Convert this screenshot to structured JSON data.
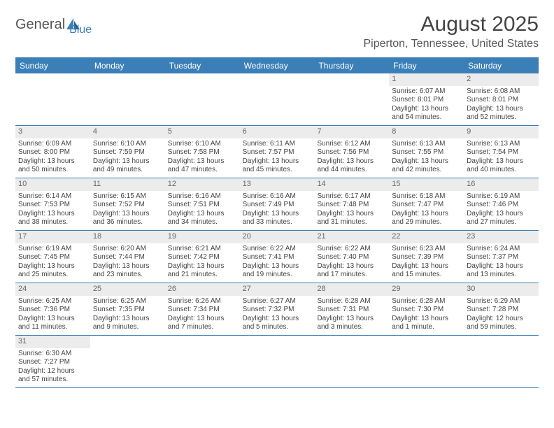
{
  "logo": {
    "part1": "General",
    "part2": "Blue"
  },
  "title": "August 2025",
  "location": "Piperton, Tennessee, United States",
  "day_headers": [
    "Sunday",
    "Monday",
    "Tuesday",
    "Wednesday",
    "Thursday",
    "Friday",
    "Saturday"
  ],
  "colors": {
    "accent": "#3a7fb8",
    "daynum_bg": "#ececec"
  },
  "weeks": [
    [
      null,
      null,
      null,
      null,
      null,
      {
        "n": "1",
        "sr": "6:07 AM",
        "ss": "8:01 PM",
        "dl": "13 hours and 54 minutes."
      },
      {
        "n": "2",
        "sr": "6:08 AM",
        "ss": "8:01 PM",
        "dl": "13 hours and 52 minutes."
      }
    ],
    [
      {
        "n": "3",
        "sr": "6:09 AM",
        "ss": "8:00 PM",
        "dl": "13 hours and 50 minutes."
      },
      {
        "n": "4",
        "sr": "6:10 AM",
        "ss": "7:59 PM",
        "dl": "13 hours and 49 minutes."
      },
      {
        "n": "5",
        "sr": "6:10 AM",
        "ss": "7:58 PM",
        "dl": "13 hours and 47 minutes."
      },
      {
        "n": "6",
        "sr": "6:11 AM",
        "ss": "7:57 PM",
        "dl": "13 hours and 45 minutes."
      },
      {
        "n": "7",
        "sr": "6:12 AM",
        "ss": "7:56 PM",
        "dl": "13 hours and 44 minutes."
      },
      {
        "n": "8",
        "sr": "6:13 AM",
        "ss": "7:55 PM",
        "dl": "13 hours and 42 minutes."
      },
      {
        "n": "9",
        "sr": "6:13 AM",
        "ss": "7:54 PM",
        "dl": "13 hours and 40 minutes."
      }
    ],
    [
      {
        "n": "10",
        "sr": "6:14 AM",
        "ss": "7:53 PM",
        "dl": "13 hours and 38 minutes."
      },
      {
        "n": "11",
        "sr": "6:15 AM",
        "ss": "7:52 PM",
        "dl": "13 hours and 36 minutes."
      },
      {
        "n": "12",
        "sr": "6:16 AM",
        "ss": "7:51 PM",
        "dl": "13 hours and 34 minutes."
      },
      {
        "n": "13",
        "sr": "6:16 AM",
        "ss": "7:49 PM",
        "dl": "13 hours and 33 minutes."
      },
      {
        "n": "14",
        "sr": "6:17 AM",
        "ss": "7:48 PM",
        "dl": "13 hours and 31 minutes."
      },
      {
        "n": "15",
        "sr": "6:18 AM",
        "ss": "7:47 PM",
        "dl": "13 hours and 29 minutes."
      },
      {
        "n": "16",
        "sr": "6:19 AM",
        "ss": "7:46 PM",
        "dl": "13 hours and 27 minutes."
      }
    ],
    [
      {
        "n": "17",
        "sr": "6:19 AM",
        "ss": "7:45 PM",
        "dl": "13 hours and 25 minutes."
      },
      {
        "n": "18",
        "sr": "6:20 AM",
        "ss": "7:44 PM",
        "dl": "13 hours and 23 minutes."
      },
      {
        "n": "19",
        "sr": "6:21 AM",
        "ss": "7:42 PM",
        "dl": "13 hours and 21 minutes."
      },
      {
        "n": "20",
        "sr": "6:22 AM",
        "ss": "7:41 PM",
        "dl": "13 hours and 19 minutes."
      },
      {
        "n": "21",
        "sr": "6:22 AM",
        "ss": "7:40 PM",
        "dl": "13 hours and 17 minutes."
      },
      {
        "n": "22",
        "sr": "6:23 AM",
        "ss": "7:39 PM",
        "dl": "13 hours and 15 minutes."
      },
      {
        "n": "23",
        "sr": "6:24 AM",
        "ss": "7:37 PM",
        "dl": "13 hours and 13 minutes."
      }
    ],
    [
      {
        "n": "24",
        "sr": "6:25 AM",
        "ss": "7:36 PM",
        "dl": "13 hours and 11 minutes."
      },
      {
        "n": "25",
        "sr": "6:25 AM",
        "ss": "7:35 PM",
        "dl": "13 hours and 9 minutes."
      },
      {
        "n": "26",
        "sr": "6:26 AM",
        "ss": "7:34 PM",
        "dl": "13 hours and 7 minutes."
      },
      {
        "n": "27",
        "sr": "6:27 AM",
        "ss": "7:32 PM",
        "dl": "13 hours and 5 minutes."
      },
      {
        "n": "28",
        "sr": "6:28 AM",
        "ss": "7:31 PM",
        "dl": "13 hours and 3 minutes."
      },
      {
        "n": "29",
        "sr": "6:28 AM",
        "ss": "7:30 PM",
        "dl": "13 hours and 1 minute."
      },
      {
        "n": "30",
        "sr": "6:29 AM",
        "ss": "7:28 PM",
        "dl": "12 hours and 59 minutes."
      }
    ],
    [
      {
        "n": "31",
        "sr": "6:30 AM",
        "ss": "7:27 PM",
        "dl": "12 hours and 57 minutes."
      },
      null,
      null,
      null,
      null,
      null,
      null
    ]
  ]
}
